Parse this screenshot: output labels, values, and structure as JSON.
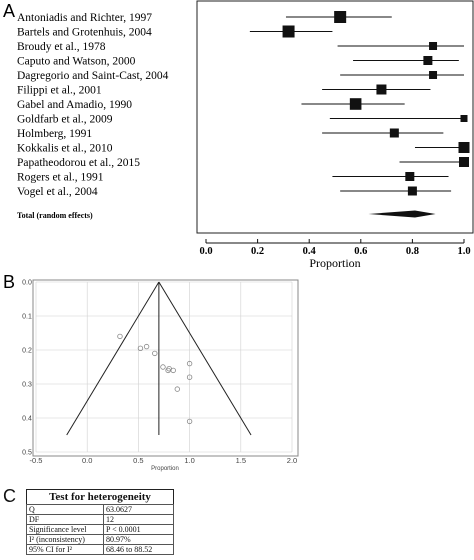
{
  "panels": {
    "a_label": "A",
    "b_label": "B",
    "c_label": "C"
  },
  "chart_data": [
    {
      "type": "forest",
      "panel": "A",
      "title": "",
      "xlabel": "Proportion",
      "ylabel": "",
      "xlim": [
        0.0,
        1.0
      ],
      "xticks": [
        "0.0",
        "0.2",
        "0.4",
        "0.6",
        "0.8",
        "1.0"
      ],
      "grid": false,
      "studies": [
        {
          "name": "Antoniadis and Richter, 1997",
          "estimate": 0.52,
          "ci_low": 0.31,
          "ci_high": 0.72,
          "weight": 4
        },
        {
          "name": "Bartels and Grotenhuis, 2004",
          "estimate": 0.32,
          "ci_low": 0.17,
          "ci_high": 0.49,
          "weight": 4
        },
        {
          "name": "Broudy et al., 1978",
          "estimate": 0.88,
          "ci_low": 0.51,
          "ci_high": 1.0,
          "weight": 2
        },
        {
          "name": "Caputo and Watson, 2000",
          "estimate": 0.86,
          "ci_low": 0.57,
          "ci_high": 0.98,
          "weight": 2.5
        },
        {
          "name": "Dagregorio and Saint-Cast, 2004",
          "estimate": 0.88,
          "ci_low": 0.52,
          "ci_high": 1.0,
          "weight": 2
        },
        {
          "name": "Filippi et al., 2001",
          "estimate": 0.68,
          "ci_low": 0.45,
          "ci_high": 0.87,
          "weight": 3
        },
        {
          "name": "Gabel and Amadio, 1990",
          "estimate": 0.58,
          "ci_low": 0.37,
          "ci_high": 0.77,
          "weight": 3.8
        },
        {
          "name": "Goldfarb et al., 2009",
          "estimate": 1.0,
          "ci_low": 0.48,
          "ci_high": 1.0,
          "weight": 1.5
        },
        {
          "name": "Holmberg, 1991",
          "estimate": 0.73,
          "ci_low": 0.45,
          "ci_high": 0.92,
          "weight": 2.5
        },
        {
          "name": "Kokkalis et al., 2010",
          "estimate": 1.0,
          "ci_low": 0.81,
          "ci_high": 1.0,
          "weight": 3.5
        },
        {
          "name": "Papatheodorou et al., 2015",
          "estimate": 1.0,
          "ci_low": 0.75,
          "ci_high": 1.0,
          "weight": 3
        },
        {
          "name": "Rogers et al., 1991",
          "estimate": 0.79,
          "ci_low": 0.49,
          "ci_high": 0.94,
          "weight": 2.5
        },
        {
          "name": "Vogel et al., 2004",
          "estimate": 0.8,
          "ci_low": 0.52,
          "ci_high": 0.95,
          "weight": 2.5
        }
      ],
      "total": {
        "name": "Total (random effects)",
        "estimate": 0.81,
        "ci_low": 0.63,
        "ci_high": 0.89
      }
    },
    {
      "type": "scatter",
      "subtype": "funnel",
      "panel": "B",
      "title": "",
      "xlabel": "Proportion",
      "ylabel": "",
      "xlim": [
        -0.5,
        2.0
      ],
      "ylim": [
        0.0,
        0.5
      ],
      "y_inverted": true,
      "xticks": [
        "-0.5",
        "0.0",
        "0.5",
        "1.0",
        "1.5",
        "2.0"
      ],
      "yticks": [
        "0.0",
        "0.1",
        "0.2",
        "0.3",
        "0.4",
        "0.5"
      ],
      "grid": true,
      "pooled": 0.7,
      "funnel_apex": [
        0.7,
        0.0
      ],
      "funnel_left_base": [
        -0.2,
        0.45
      ],
      "funnel_right_base": [
        1.6,
        0.45
      ],
      "points": [
        {
          "x": 0.32,
          "y": 0.16
        },
        {
          "x": 0.52,
          "y": 0.195
        },
        {
          "x": 0.58,
          "y": 0.19
        },
        {
          "x": 0.66,
          "y": 0.21
        },
        {
          "x": 1.0,
          "y": 0.24
        },
        {
          "x": 0.74,
          "y": 0.25
        },
        {
          "x": 0.79,
          "y": 0.26
        },
        {
          "x": 0.84,
          "y": 0.26
        },
        {
          "x": 0.8,
          "y": 0.255
        },
        {
          "x": 1.0,
          "y": 0.28
        },
        {
          "x": 0.88,
          "y": 0.315
        },
        {
          "x": 1.0,
          "y": 0.41
        }
      ]
    }
  ],
  "heterogeneity": {
    "title": "Test for heterogeneity",
    "rows": [
      {
        "label": "Q",
        "value": "63.0627"
      },
      {
        "label": "DF",
        "value": "12"
      },
      {
        "label": "Significance level",
        "value": "P < 0.0001"
      },
      {
        "label": "I² (inconsistency)",
        "value": "80.97%"
      },
      {
        "label": "95% CI for I²",
        "value": "68.46 to 88.52"
      }
    ]
  }
}
